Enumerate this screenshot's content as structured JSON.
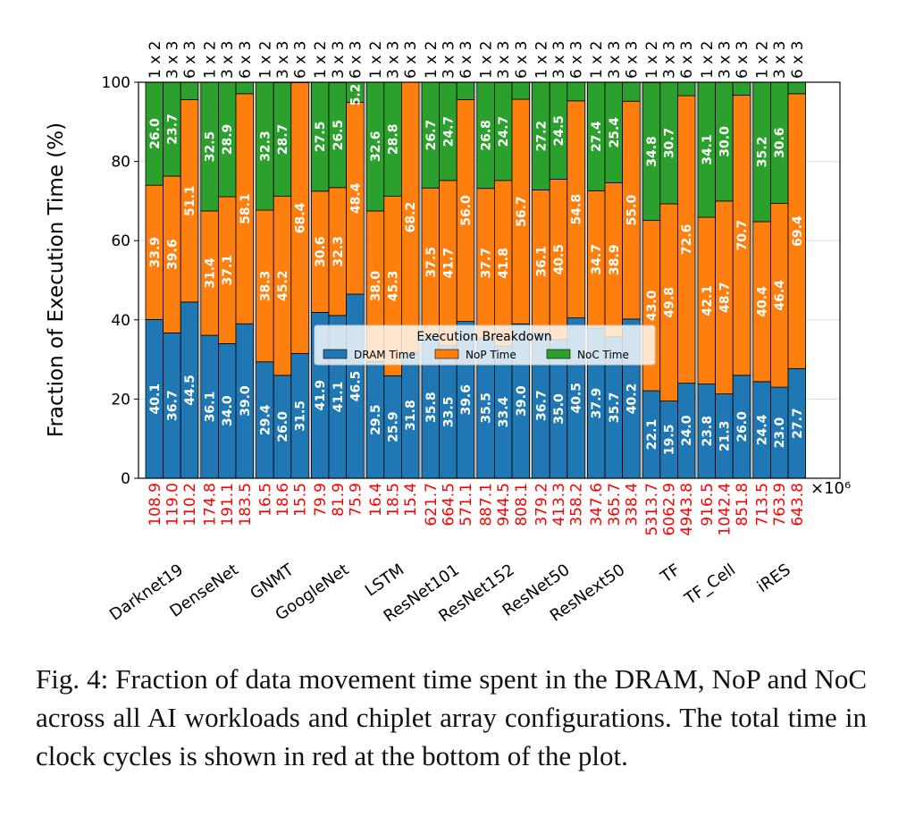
{
  "chart_data": {
    "type": "bar",
    "stacked": true,
    "ylabel": "Fraction of Execution Time (%)",
    "ylim": [
      0,
      100
    ],
    "yticks": [
      0,
      20,
      40,
      60,
      80,
      100
    ],
    "grid": true,
    "categories": [
      "Darknet19",
      "DenseNet",
      "GNMT",
      "GoogleNet",
      "LSTM",
      "ResNet101",
      "ResNet152",
      "ResNet50",
      "ResNext50",
      "TF",
      "TF_Cell",
      "iRES"
    ],
    "configs": [
      "1 x 2",
      "3 x 3",
      "6 x 3"
    ],
    "legend": {
      "title": "Execution Breakdown",
      "placement": "center"
    },
    "series": [
      {
        "name": "DRAM Time",
        "color": "#1f77b4",
        "values": [
          [
            40.1,
            36.7,
            44.5
          ],
          [
            36.1,
            34.0,
            39.0
          ],
          [
            29.4,
            26.0,
            31.5
          ],
          [
            41.9,
            41.1,
            46.5
          ],
          [
            29.5,
            25.9,
            31.8
          ],
          [
            35.8,
            33.5,
            39.6
          ],
          [
            35.5,
            33.4,
            39.0
          ],
          [
            36.7,
            35.0,
            40.5
          ],
          [
            37.9,
            35.7,
            40.2
          ],
          [
            22.1,
            19.5,
            24.0
          ],
          [
            23.8,
            21.3,
            26.0
          ],
          [
            24.4,
            23.0,
            27.7
          ]
        ]
      },
      {
        "name": "NoP Time",
        "color": "#ff7f0e",
        "values": [
          [
            33.9,
            39.6,
            51.1
          ],
          [
            31.4,
            37.1,
            58.1
          ],
          [
            38.3,
            45.2,
            68.4
          ],
          [
            30.6,
            32.3,
            48.4
          ],
          [
            38.0,
            45.3,
            68.2
          ],
          [
            37.5,
            41.7,
            56.0
          ],
          [
            37.7,
            41.8,
            56.7
          ],
          [
            36.1,
            40.5,
            54.8
          ],
          [
            34.7,
            38.9,
            55.0
          ],
          [
            43.0,
            49.8,
            72.6
          ],
          [
            42.1,
            48.7,
            70.7
          ],
          [
            40.4,
            46.4,
            69.4
          ]
        ]
      },
      {
        "name": "NoC Time",
        "color": "#2ca02c",
        "values": [
          [
            26.0,
            23.7,
            null
          ],
          [
            32.5,
            28.9,
            null
          ],
          [
            32.3,
            28.7,
            null
          ],
          [
            27.5,
            26.5,
            5.2
          ],
          [
            32.6,
            28.8,
            null
          ],
          [
            26.7,
            24.7,
            null
          ],
          [
            26.8,
            24.7,
            null
          ],
          [
            27.2,
            24.5,
            null
          ],
          [
            27.4,
            25.4,
            null
          ],
          [
            34.8,
            30.7,
            null
          ],
          [
            34.1,
            30.0,
            null
          ],
          [
            35.2,
            30.6,
            null
          ]
        ]
      }
    ],
    "totals_color": "#ff0000",
    "totals_unit": "×10⁶",
    "totals": [
      [
        108.9,
        119.0,
        110.2
      ],
      [
        174.8,
        191.1,
        183.5
      ],
      [
        16.5,
        18.6,
        15.5
      ],
      [
        79.9,
        81.9,
        75.9
      ],
      [
        16.4,
        18.5,
        15.4
      ],
      [
        621.7,
        664.5,
        571.1
      ],
      [
        887.1,
        944.5,
        808.1
      ],
      [
        379.2,
        413.3,
        358.2
      ],
      [
        347.6,
        365.7,
        338.4
      ],
      [
        5313.7,
        6062.9,
        4943.8
      ],
      [
        916.5,
        1042.4,
        851.8
      ],
      [
        713.5,
        763.9,
        643.8
      ]
    ]
  },
  "caption": "Fig. 4: Fraction of data movement time spent in the DRAM, NoP and NoC across all AI workloads and chiplet array configurations. The total time in clock cycles is shown in red at the bottom of the plot."
}
